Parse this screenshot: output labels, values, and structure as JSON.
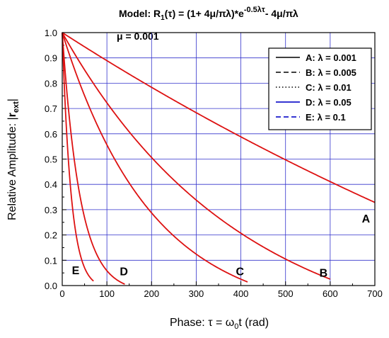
{
  "chart_data": {
    "type": "line",
    "title_parts": {
      "model_prefix": "Model: R",
      "sub1": "1",
      "open": "(τ) = (1+ 4μ/πλ)*e",
      "exponent": "-0.5λτ",
      "tail": "- 4μ/πλ"
    },
    "subtitle": "μ = 0.001",
    "xlabel_parts": {
      "main": "Phase: τ = ω",
      "sub": "0",
      "tail": "t   (rad)"
    },
    "ylabel_parts": {
      "main": "Relative Amplitude: |",
      "bold": "r",
      "sub": "ext",
      "tail": "|"
    },
    "xlim": [
      0,
      700
    ],
    "ylim": [
      0,
      1.0
    ],
    "xticks": [
      "0",
      "100",
      "200",
      "300",
      "400",
      "500",
      "600",
      "700"
    ],
    "yticks": [
      "0.0",
      "0.1",
      "0.2",
      "0.3",
      "0.4",
      "0.5",
      "0.6",
      "0.7",
      "0.8",
      "0.9",
      "1.0"
    ],
    "grid": true,
    "legend_position": "top-right",
    "mu": 0.001,
    "series": [
      {
        "name": "A: λ = 0.001",
        "label": "A",
        "lambda": 0.001,
        "x_end": 700,
        "label_x": 680,
        "label_y": 0.25,
        "legend_dash": "solid"
      },
      {
        "name": "B: λ = 0.005",
        "label": "B",
        "lambda": 0.005,
        "x_end": 600,
        "label_x": 585,
        "label_y": 0.035,
        "legend_dash": "dash"
      },
      {
        "name": "C: λ = 0.01",
        "label": "C",
        "lambda": 0.01,
        "x_end": 415,
        "label_x": 398,
        "label_y": 0.04,
        "legend_dash": "dot"
      },
      {
        "name": "D: λ = 0.05",
        "label": "D",
        "lambda": 0.05,
        "x_end": 140,
        "label_x": 138,
        "label_y": 0.04,
        "legend_dash": "solid"
      },
      {
        "name": "E: λ = 0.1",
        "label": "E",
        "lambda": 0.1,
        "x_end": 70,
        "label_x": 30,
        "label_y": 0.045,
        "legend_dash": "dash"
      }
    ],
    "colors": {
      "curve": "#dd1111",
      "grid": "#3333cc",
      "legend_line_black": "#000000",
      "legend_line_blue": "#1a1acc"
    }
  }
}
